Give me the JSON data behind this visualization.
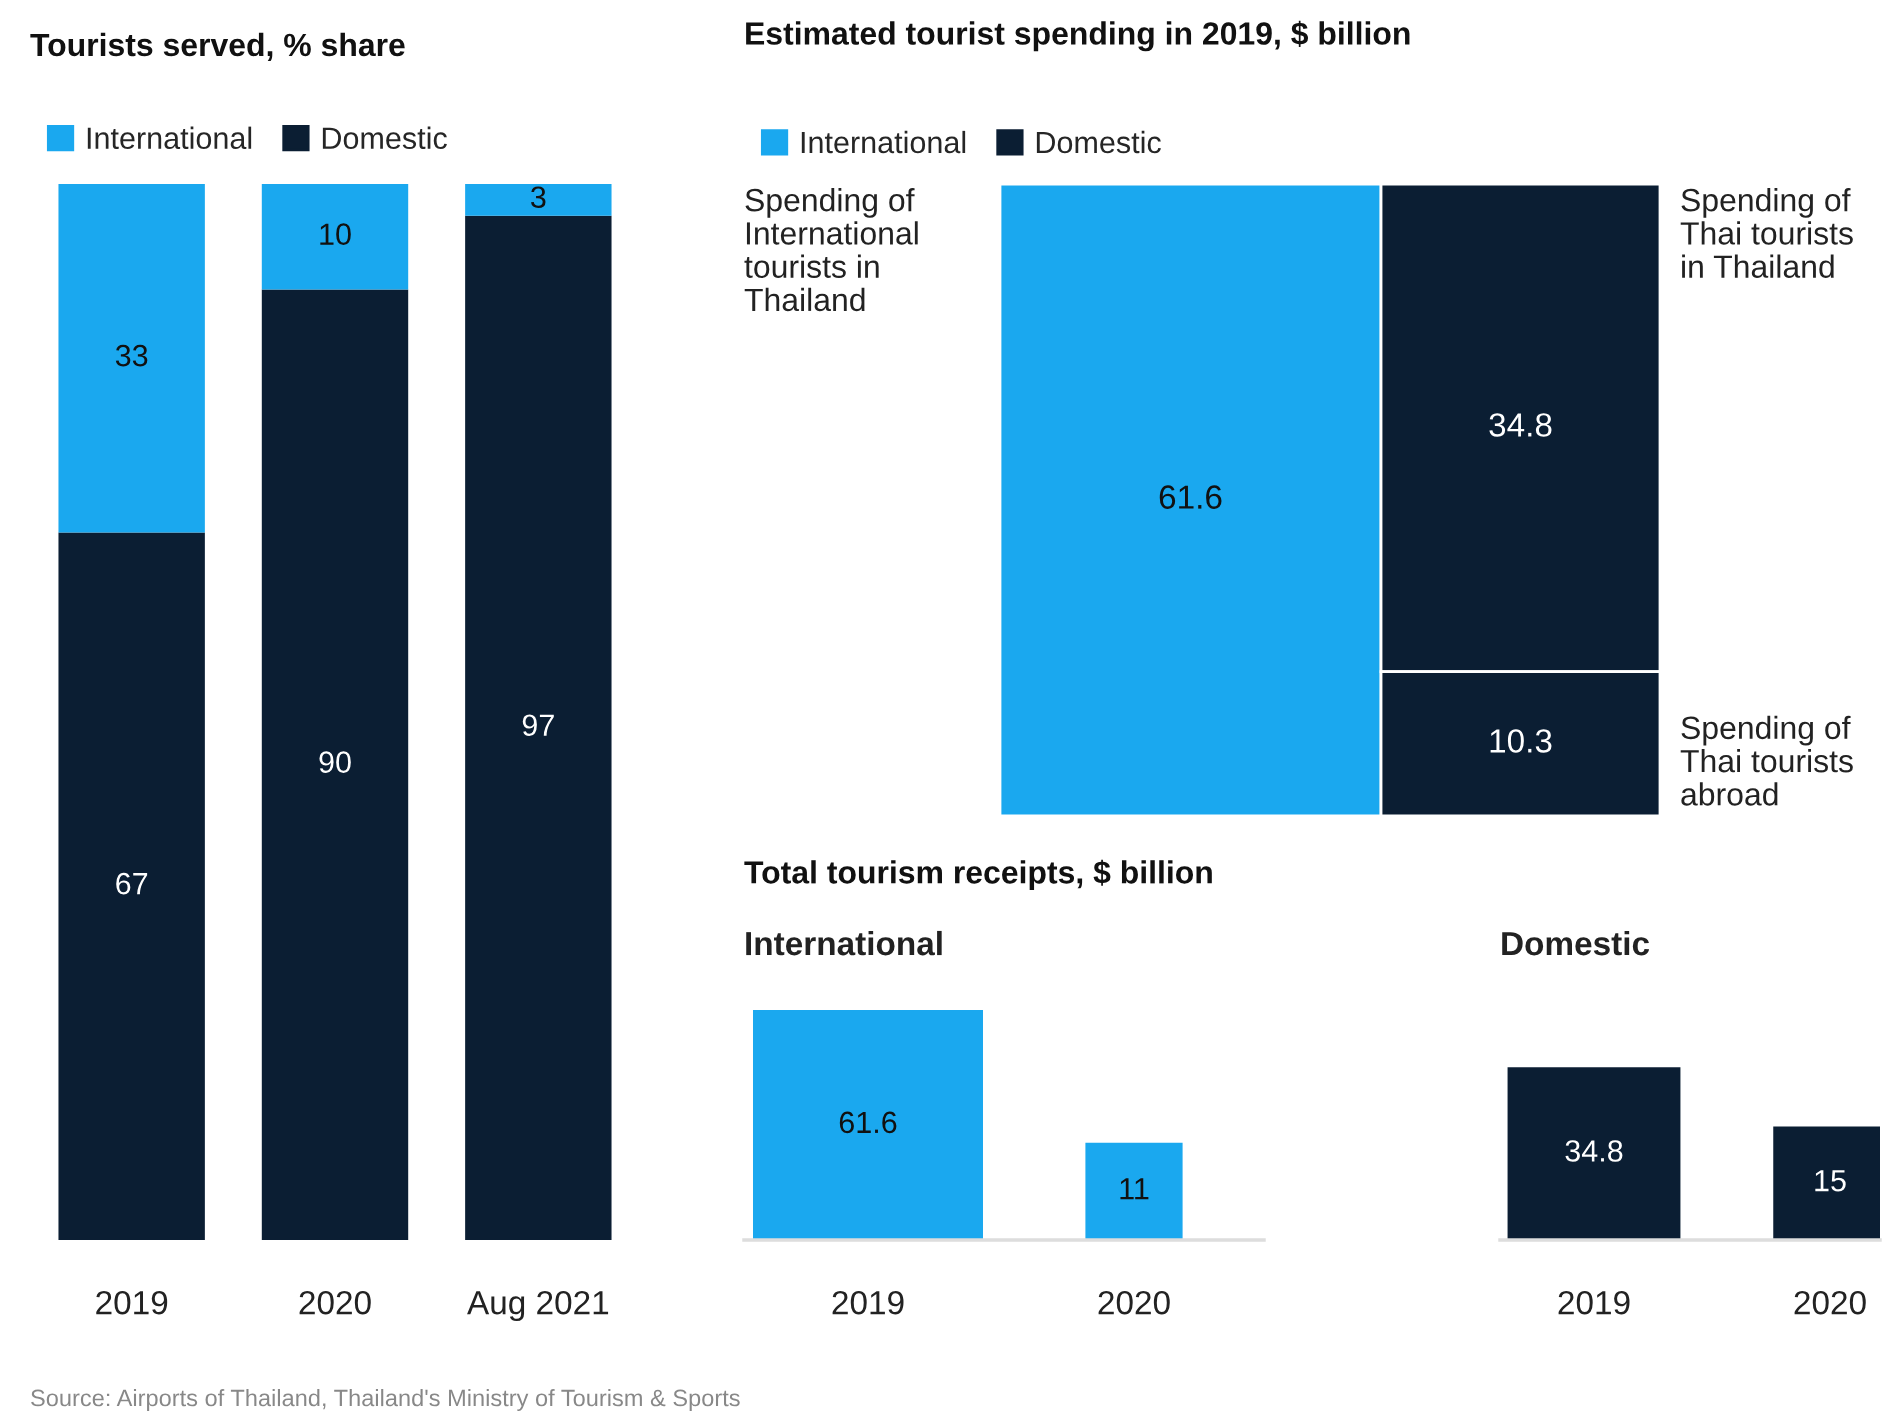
{
  "chart_data": [
    {
      "type": "bar",
      "title": "Tourists served, % share",
      "categories": [
        "2019",
        "2020",
        "Aug 2021"
      ],
      "stacked": true,
      "data_labels": true,
      "legend": "top left",
      "series": [
        {
          "name": "Domestic",
          "color": "#0b1e33",
          "values": [
            67,
            90,
            97
          ]
        },
        {
          "name": "International",
          "color": "#1aa8ef",
          "values": [
            33,
            10,
            3
          ]
        }
      ],
      "annotations": [
        "Source: Airports of Thailand, Thailand's Ministry of Tourism & Sports"
      ]
    },
    {
      "type": "other",
      "title": "Estimated tourist spending in 2019, $ billion",
      "categories": [
        "Spending of International tourists in Thailand",
        "Spending of Thai tourists in Thailand",
        "Spending of Thai tourists abroad"
      ],
      "data_labels": true,
      "legend": "top left",
      "series": [
        {
          "name": "International",
          "color": "#1aa8ef",
          "values": [
            61.6,
            null,
            null
          ]
        },
        {
          "name": "Domestic",
          "color": "#0b1e33",
          "values": [
            null,
            34.8,
            10.3
          ]
        }
      ]
    },
    {
      "type": "other",
      "title": "Total tourism receipts, $ billion",
      "subtitle": "International",
      "categories": [
        "2019",
        "2020"
      ],
      "values": [
        61.6,
        11
      ],
      "color": "#1aa8ef",
      "data_labels": true
    },
    {
      "type": "other",
      "subtitle": "Domestic",
      "categories": [
        "2019",
        "2020"
      ],
      "values": [
        34.8,
        15
      ],
      "color": "#0b1e33",
      "data_labels": true
    }
  ]
}
